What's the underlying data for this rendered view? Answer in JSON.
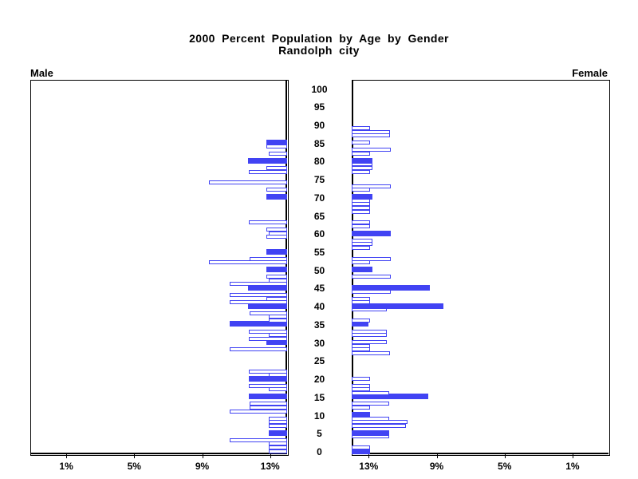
{
  "title": {
    "line1": "2000 Percent Population by Age by Gender",
    "line2": "Randolph city"
  },
  "panel_labels": {
    "left": "Male",
    "right": "Female"
  },
  "colors": {
    "bar_blue": "#4143f3",
    "axis_black": "#000000",
    "background": "#ffffff"
  },
  "chart_data": {
    "type": "bar",
    "subtype": "population-pyramid",
    "title": "2000 Percent Population by Age by Gender",
    "subtitle": "Randolph city",
    "unit": "percent of population",
    "orientation": "horizontal, male bars extend left, female bars extend right",
    "grid": false,
    "legend": false,
    "age_axis": {
      "min": 0,
      "max": 100,
      "tick_step": 5,
      "tick_labels": [
        0,
        5,
        10,
        15,
        20,
        25,
        30,
        35,
        40,
        45,
        50,
        55,
        60,
        65,
        70,
        75,
        80,
        85,
        90,
        95,
        100
      ]
    },
    "pct_axis": {
      "min": 0,
      "max": 15,
      "male_tick_labels": [
        "13%",
        "9%",
        "5%",
        "1%"
      ],
      "female_tick_labels": [
        "1%",
        "5%",
        "9%",
        "13%"
      ],
      "tick_values": [
        13,
        9,
        5,
        1
      ]
    },
    "bar_styles": {
      "solid": "filled blue bar",
      "outline": "white bar with blue outline"
    },
    "series": [
      {
        "name": "Male",
        "bars": [
          {
            "age": 0,
            "pct": 1.1,
            "solid": false
          },
          {
            "age": 1,
            "pct": 1.1,
            "solid": false
          },
          {
            "age": 2,
            "pct": 1.1,
            "solid": false
          },
          {
            "age": 3,
            "pct": 3.4,
            "solid": false
          },
          {
            "age": 5,
            "pct": 1.1,
            "solid": true
          },
          {
            "age": 7,
            "pct": 1.1,
            "solid": false
          },
          {
            "age": 8,
            "pct": 1.1,
            "solid": false
          },
          {
            "age": 9,
            "pct": 1.1,
            "solid": false
          },
          {
            "age": 11,
            "pct": 3.4,
            "solid": false
          },
          {
            "age": 12,
            "pct": 2.2,
            "solid": false
          },
          {
            "age": 13,
            "pct": 2.2,
            "solid": false
          },
          {
            "age": 15,
            "pct": 2.25,
            "solid": true
          },
          {
            "age": 17,
            "pct": 1.1,
            "solid": false
          },
          {
            "age": 18,
            "pct": 2.25,
            "solid": false
          },
          {
            "age": 20,
            "pct": 2.25,
            "solid": true
          },
          {
            "age": 21,
            "pct": 1.1,
            "solid": false
          },
          {
            "age": 22,
            "pct": 2.25,
            "solid": false
          },
          {
            "age": 28,
            "pct": 3.4,
            "solid": false
          },
          {
            "age": 30,
            "pct": 1.2,
            "solid": true
          },
          {
            "age": 31,
            "pct": 2.25,
            "solid": false
          },
          {
            "age": 32,
            "pct": 1.1,
            "solid": false
          },
          {
            "age": 33,
            "pct": 2.25,
            "solid": false
          },
          {
            "age": 35,
            "pct": 3.4,
            "solid": true
          },
          {
            "age": 36,
            "pct": 1.1,
            "solid": false
          },
          {
            "age": 37,
            "pct": 1.1,
            "solid": false
          },
          {
            "age": 38,
            "pct": 2.2,
            "solid": false
          },
          {
            "age": 40,
            "pct": 2.3,
            "solid": true
          },
          {
            "age": 41,
            "pct": 3.4,
            "solid": false
          },
          {
            "age": 42,
            "pct": 1.2,
            "solid": false
          },
          {
            "age": 43,
            "pct": 3.4,
            "solid": false
          },
          {
            "age": 45,
            "pct": 2.3,
            "solid": true
          },
          {
            "age": 46,
            "pct": 3.4,
            "solid": false
          },
          {
            "age": 47,
            "pct": 1.1,
            "solid": false
          },
          {
            "age": 48,
            "pct": 1.2,
            "solid": false
          },
          {
            "age": 50,
            "pct": 1.2,
            "solid": true
          },
          {
            "age": 52,
            "pct": 4.6,
            "solid": false
          },
          {
            "age": 53,
            "pct": 2.2,
            "solid": false
          },
          {
            "age": 55,
            "pct": 1.2,
            "solid": true
          },
          {
            "age": 59,
            "pct": 1.2,
            "solid": false
          },
          {
            "age": 60,
            "pct": 1.1,
            "solid": false
          },
          {
            "age": 61,
            "pct": 1.2,
            "solid": false
          },
          {
            "age": 63,
            "pct": 2.25,
            "solid": false
          },
          {
            "age": 70,
            "pct": 1.2,
            "solid": true
          },
          {
            "age": 72,
            "pct": 1.2,
            "solid": false
          },
          {
            "age": 74,
            "pct": 4.6,
            "solid": false
          },
          {
            "age": 77,
            "pct": 2.25,
            "solid": false
          },
          {
            "age": 78,
            "pct": 1.2,
            "solid": false
          },
          {
            "age": 80,
            "pct": 2.3,
            "solid": true
          },
          {
            "age": 82,
            "pct": 1.1,
            "solid": false
          },
          {
            "age": 84,
            "pct": 1.2,
            "solid": false
          },
          {
            "age": 85,
            "pct": 1.2,
            "solid": true
          }
        ]
      },
      {
        "name": "Female",
        "bars": [
          {
            "age": 0,
            "pct": 1.1,
            "solid": true
          },
          {
            "age": 1,
            "pct": 1.1,
            "solid": false
          },
          {
            "age": 4,
            "pct": 2.2,
            "solid": false
          },
          {
            "age": 5,
            "pct": 2.2,
            "solid": true
          },
          {
            "age": 7,
            "pct": 3.2,
            "solid": false
          },
          {
            "age": 8,
            "pct": 3.3,
            "solid": false
          },
          {
            "age": 9,
            "pct": 2.2,
            "solid": false
          },
          {
            "age": 10,
            "pct": 1.1,
            "solid": true
          },
          {
            "age": 12,
            "pct": 1.1,
            "solid": false
          },
          {
            "age": 13,
            "pct": 2.2,
            "solid": false
          },
          {
            "age": 15,
            "pct": 4.5,
            "solid": true
          },
          {
            "age": 16,
            "pct": 2.2,
            "solid": false
          },
          {
            "age": 17,
            "pct": 1.1,
            "solid": false
          },
          {
            "age": 18,
            "pct": 1.1,
            "solid": false
          },
          {
            "age": 20,
            "pct": 1.1,
            "solid": false
          },
          {
            "age": 27,
            "pct": 2.25,
            "solid": false
          },
          {
            "age": 28,
            "pct": 1.1,
            "solid": false
          },
          {
            "age": 29,
            "pct": 1.1,
            "solid": false
          },
          {
            "age": 30,
            "pct": 2.05,
            "solid": false
          },
          {
            "age": 32,
            "pct": 2.05,
            "solid": false
          },
          {
            "age": 33,
            "pct": 2.05,
            "solid": false
          },
          {
            "age": 35,
            "pct": 1.0,
            "solid": true
          },
          {
            "age": 36,
            "pct": 1.1,
            "solid": false
          },
          {
            "age": 39,
            "pct": 2.05,
            "solid": false
          },
          {
            "age": 40,
            "pct": 5.4,
            "solid": true
          },
          {
            "age": 41,
            "pct": 1.1,
            "solid": false
          },
          {
            "age": 42,
            "pct": 1.1,
            "solid": false
          },
          {
            "age": 44,
            "pct": 2.3,
            "solid": false
          },
          {
            "age": 45,
            "pct": 4.6,
            "solid": true
          },
          {
            "age": 48,
            "pct": 2.3,
            "solid": false
          },
          {
            "age": 50,
            "pct": 1.2,
            "solid": true
          },
          {
            "age": 52,
            "pct": 1.1,
            "solid": false
          },
          {
            "age": 53,
            "pct": 2.3,
            "solid": false
          },
          {
            "age": 56,
            "pct": 1.1,
            "solid": false
          },
          {
            "age": 57,
            "pct": 1.2,
            "solid": false
          },
          {
            "age": 58,
            "pct": 1.2,
            "solid": false
          },
          {
            "age": 60,
            "pct": 2.3,
            "solid": true
          },
          {
            "age": 62,
            "pct": 1.1,
            "solid": false
          },
          {
            "age": 63,
            "pct": 1.1,
            "solid": false
          },
          {
            "age": 66,
            "pct": 1.1,
            "solid": false
          },
          {
            "age": 67,
            "pct": 1.1,
            "solid": false
          },
          {
            "age": 68,
            "pct": 1.1,
            "solid": false
          },
          {
            "age": 69,
            "pct": 1.1,
            "solid": false
          },
          {
            "age": 70,
            "pct": 1.2,
            "solid": true
          },
          {
            "age": 72,
            "pct": 1.1,
            "solid": false
          },
          {
            "age": 73,
            "pct": 2.3,
            "solid": false
          },
          {
            "age": 77,
            "pct": 1.1,
            "solid": false
          },
          {
            "age": 78,
            "pct": 1.2,
            "solid": false
          },
          {
            "age": 79,
            "pct": 1.2,
            "solid": false
          },
          {
            "age": 80,
            "pct": 1.2,
            "solid": true
          },
          {
            "age": 82,
            "pct": 1.1,
            "solid": false
          },
          {
            "age": 83,
            "pct": 2.3,
            "solid": false
          },
          {
            "age": 85,
            "pct": 1.1,
            "solid": false
          },
          {
            "age": 87,
            "pct": 2.25,
            "solid": false
          },
          {
            "age": 88,
            "pct": 2.25,
            "solid": false
          },
          {
            "age": 89,
            "pct": 1.1,
            "solid": false
          }
        ]
      }
    ]
  }
}
